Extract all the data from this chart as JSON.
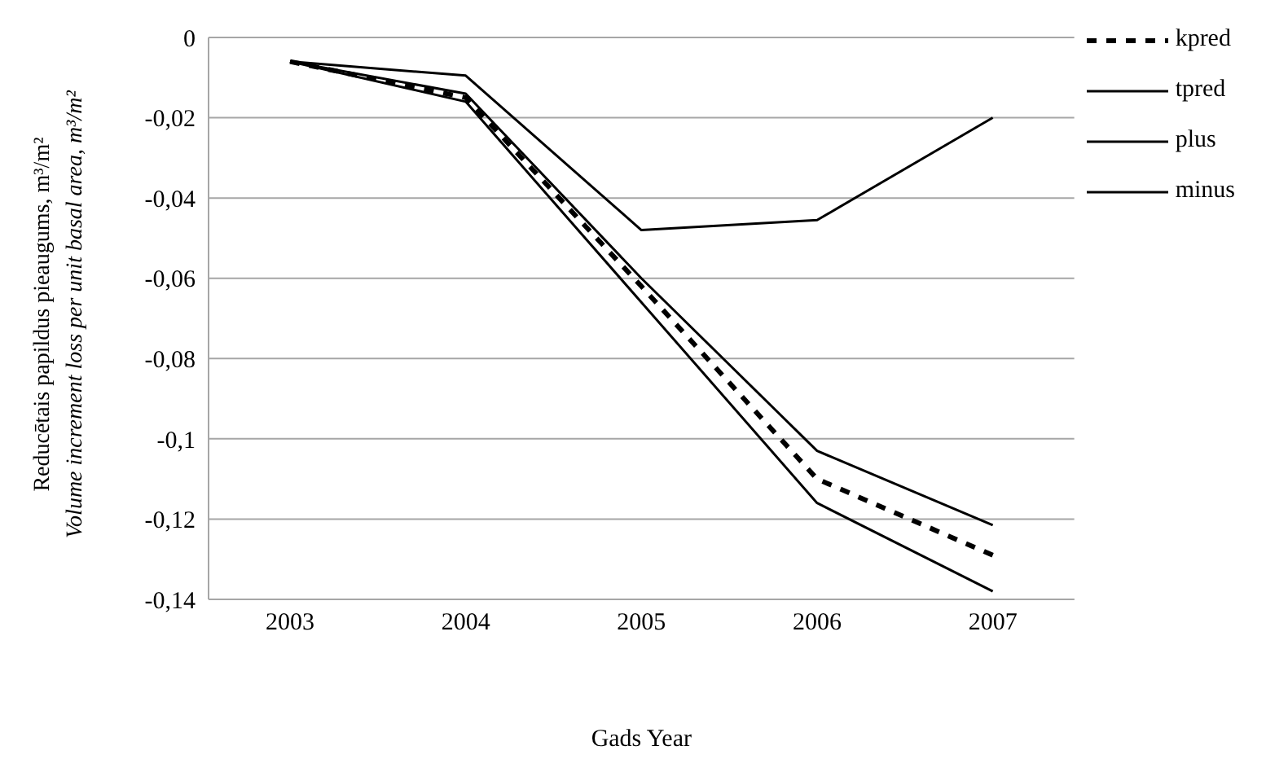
{
  "chart_data": {
    "type": "line",
    "categories": [
      "2003",
      "2004",
      "2005",
      "2006",
      "2007"
    ],
    "series": [
      {
        "name": "kpred",
        "color": "#000000",
        "line_style": "dashed",
        "values": [
          -0.006,
          -0.015,
          -0.062,
          -0.11,
          -0.129
        ]
      },
      {
        "name": "tpred",
        "color": "#000000",
        "values": [
          -0.006,
          -0.0095,
          -0.048,
          -0.0455,
          -0.02
        ]
      },
      {
        "name": "plus",
        "color": "#000000",
        "values": [
          -0.006,
          -0.014,
          -0.06,
          -0.103,
          -0.1215
        ]
      },
      {
        "name": "minus",
        "color": "#000000",
        "values": [
          -0.006,
          -0.016,
          -0.066,
          -0.116,
          -0.138
        ]
      }
    ],
    "ylim": [
      -0.14,
      0
    ],
    "yticks": [
      {
        "value": -0.14,
        "label": "-0,14"
      },
      {
        "value": -0.12,
        "label": "-0,12"
      },
      {
        "value": -0.1,
        "label": "-0,1"
      },
      {
        "value": -0.08,
        "label": "-0,08"
      },
      {
        "value": -0.06,
        "label": "-0,06"
      },
      {
        "value": -0.04,
        "label": "-0,04"
      },
      {
        "value": -0.02,
        "label": "-0,02"
      },
      {
        "value": 0,
        "label": "0"
      }
    ],
    "xlabel": "Gads Year",
    "ylabel": "Reducētais papildus pieaugums, m³/m²\nVolume increment loss per unit basal area, m³/m²",
    "grid": "y",
    "legend": "right",
    "marker": "none",
    "line_style": "solid"
  }
}
